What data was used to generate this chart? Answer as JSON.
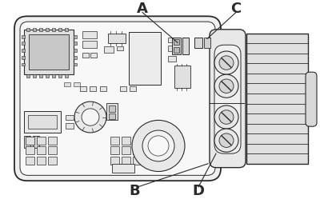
{
  "background_color": "#ffffff",
  "line_color": "#2a2a2a",
  "label_A": "A",
  "label_B": "B",
  "label_C": "C",
  "label_D": "D",
  "label_fontsize": 13,
  "label_fontweight": "bold",
  "figsize": [
    4.0,
    2.49
  ],
  "dpi": 100
}
